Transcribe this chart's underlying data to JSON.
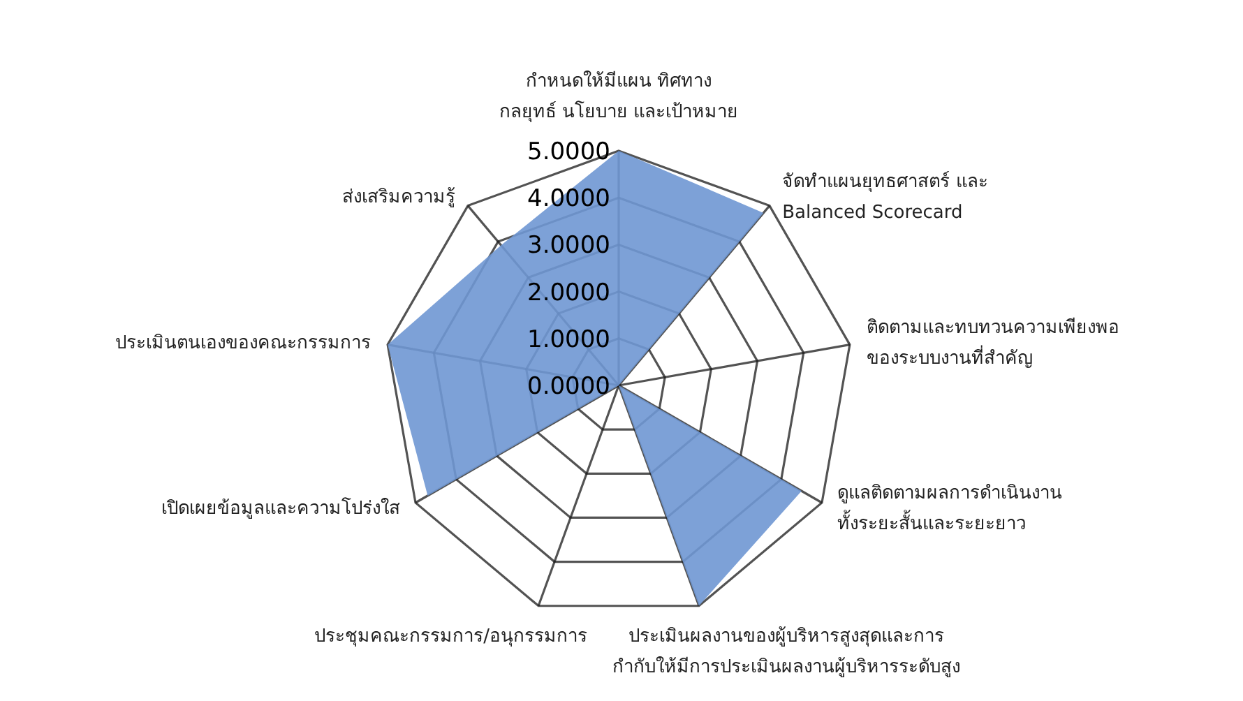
{
  "chart_data": {
    "type": "radar",
    "categories": [
      "กำหนดให้มีแผน ทิศทาง\nกลยุทธ์ นโยบาย และเป้าหมาย",
      "จัดทำแผนยุทธศาสตร์ และ\nBalanced Scorecard",
      "ติดตามและทบทวนความเพียงพอ\nของระบบงานที่สำคัญ",
      "ดูแลติดตามผลการดำเนินงาน\nทั้งระยะสั้นและระยะยาว",
      "ประเมินผลงานของผู้บริหารสูงสุดและการ\nกำกับให้มีการประเมินผลงานผู้บริหารระดับสูง",
      "ประชุมคณะกรรมการ/อนุกรรมการ",
      "เปิดเผยข้อมูลและความโปร่งใส",
      "ประเมินตนเองของคณะกรรมการ",
      "ส่งเสริมความรู้"
    ],
    "series": [
      {
        "color": "#6f97d3",
        "values": [
          5,
          4.8,
          0,
          4.5,
          5,
          0,
          4.7,
          5,
          3.9
        ]
      }
    ],
    "ylim": [
      0,
      5
    ],
    "yticks": [
      {
        "value": 0,
        "label": "0.0000"
      },
      {
        "value": 1,
        "label": "1.0000"
      },
      {
        "value": 2,
        "label": "2.0000"
      },
      {
        "value": 3,
        "label": "3.0000"
      },
      {
        "value": 4,
        "label": "4.0000"
      },
      {
        "value": 5,
        "label": "5.0000"
      }
    ],
    "grid": true,
    "legend": false
  }
}
